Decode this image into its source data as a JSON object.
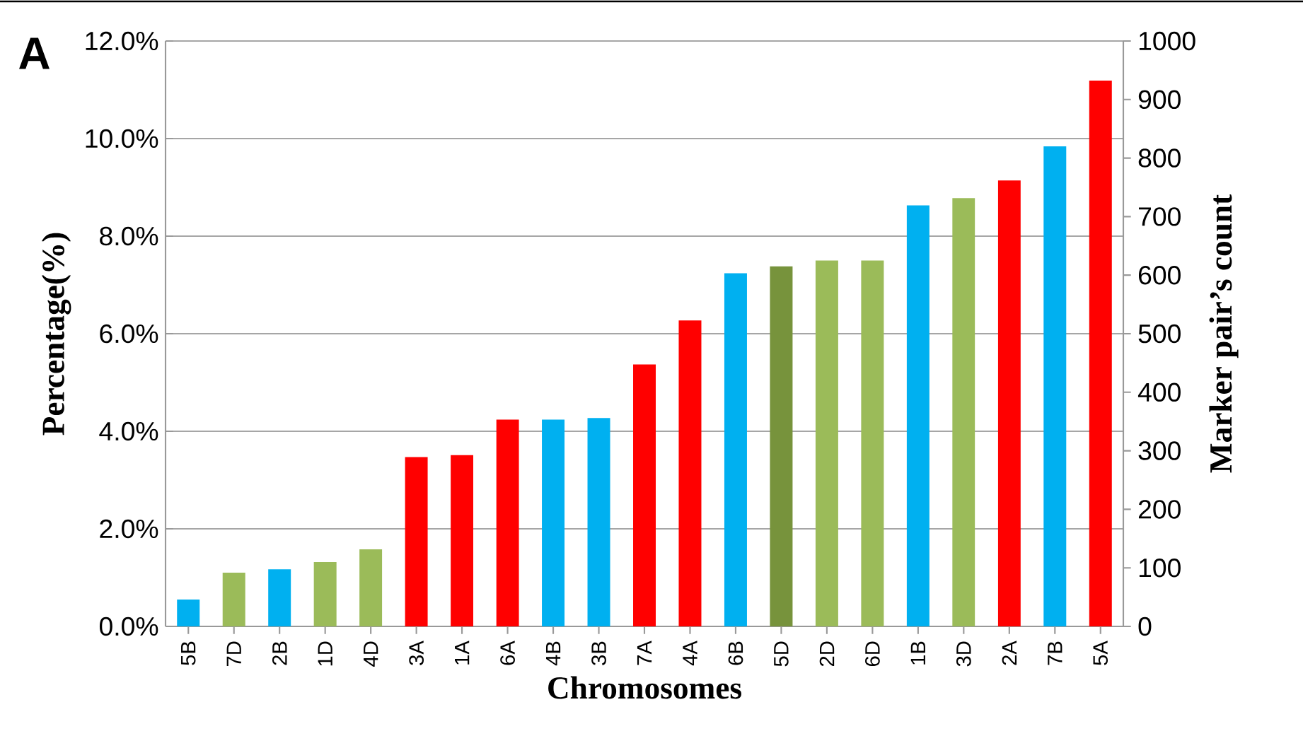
{
  "chart_data": {
    "type": "bar",
    "annotations": [
      "A"
    ],
    "xlabel": "Chromosomes",
    "ylabel": "Percentage(%)",
    "y2label": "Marker pair’s count",
    "categories": [
      "5B",
      "7D",
      "2B",
      "1D",
      "4D",
      "3A",
      "1A",
      "6A",
      "4B",
      "3B",
      "7A",
      "4A",
      "6B",
      "5D",
      "2D",
      "6D",
      "1B",
      "3D",
      "2A",
      "7B",
      "5A"
    ],
    "values": [
      0.55,
      1.1,
      1.17,
      1.32,
      1.58,
      3.47,
      3.51,
      4.24,
      4.24,
      4.27,
      5.37,
      6.27,
      7.24,
      7.38,
      7.5,
      7.5,
      8.63,
      8.78,
      9.14,
      9.84,
      11.19
    ],
    "colors": [
      "#00b0f0",
      "#9bbb59",
      "#00b0f0",
      "#9bbb59",
      "#9bbb59",
      "#ff0000",
      "#ff0000",
      "#ff0000",
      "#00b0f0",
      "#00b0f0",
      "#ff0000",
      "#ff0000",
      "#00b0f0",
      "#77933c",
      "#9bbb59",
      "#9bbb59",
      "#00b0f0",
      "#9bbb59",
      "#ff0000",
      "#00b0f0",
      "#ff0000"
    ],
    "ylim": [
      0,
      12
    ],
    "yticks": [
      {
        "value": 0,
        "label": "0.0%"
      },
      {
        "value": 2,
        "label": "2.0%"
      },
      {
        "value": 4,
        "label": "4.0%"
      },
      {
        "value": 6,
        "label": "6.0%"
      },
      {
        "value": 8,
        "label": "8.0%"
      },
      {
        "value": 10,
        "label": "10.0%"
      },
      {
        "value": 12,
        "label": "12.0%"
      }
    ],
    "y2lim": [
      0,
      1000
    ],
    "y2ticks": [
      0,
      100,
      200,
      300,
      400,
      500,
      600,
      700,
      800,
      900,
      1000
    ],
    "grid": "y"
  }
}
